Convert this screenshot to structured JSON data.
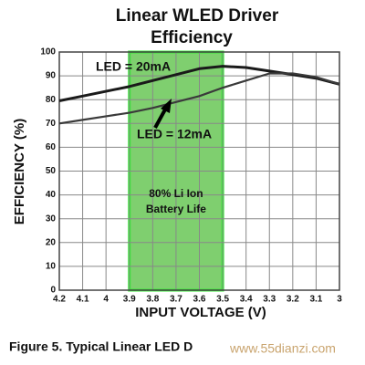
{
  "chart_data": {
    "type": "line",
    "title": "Linear WLED Driver",
    "subtitle": "Efficiency",
    "x_label": "INPUT VOLTAGE (V)",
    "y_label": "EFFICIENCY (%)",
    "x": [
      4.2,
      4.1,
      4.0,
      3.9,
      3.8,
      3.7,
      3.6,
      3.5,
      3.4,
      3.3,
      3.2,
      3.1,
      3.0
    ],
    "series": [
      {
        "name": "LED = 20mA",
        "color": "#1a1a1a",
        "values": [
          79.5,
          81.5,
          83.5,
          85.5,
          88,
          90.5,
          93,
          94,
          93.5,
          92,
          90.5,
          89,
          86.5
        ]
      },
      {
        "name": "LED = 12mA",
        "color": "#3a3a3a",
        "values": [
          70,
          71.5,
          73,
          74.5,
          76.5,
          79,
          81.5,
          85,
          88,
          91,
          91,
          89.5,
          86.5
        ]
      }
    ],
    "band": {
      "label": "80% Li Ion Battery Life",
      "range": [
        3.9,
        3.5
      ],
      "color": "#7fcf6f",
      "edge": "#33ee33"
    },
    "xlim": [
      4.2,
      3.0
    ],
    "xticks": [
      4.2,
      4.1,
      4,
      3.9,
      3.8,
      3.7,
      3.6,
      3.5,
      3.4,
      3.3,
      3.2,
      3.1,
      3
    ],
    "ylim": [
      0,
      100
    ],
    "yticks": [
      0,
      10,
      20,
      30,
      40,
      50,
      60,
      70,
      80,
      90,
      100
    ],
    "grid": true,
    "caption": "Figure 5.  Typical Linear LED D",
    "watermark": "www.55dianzi.com"
  }
}
